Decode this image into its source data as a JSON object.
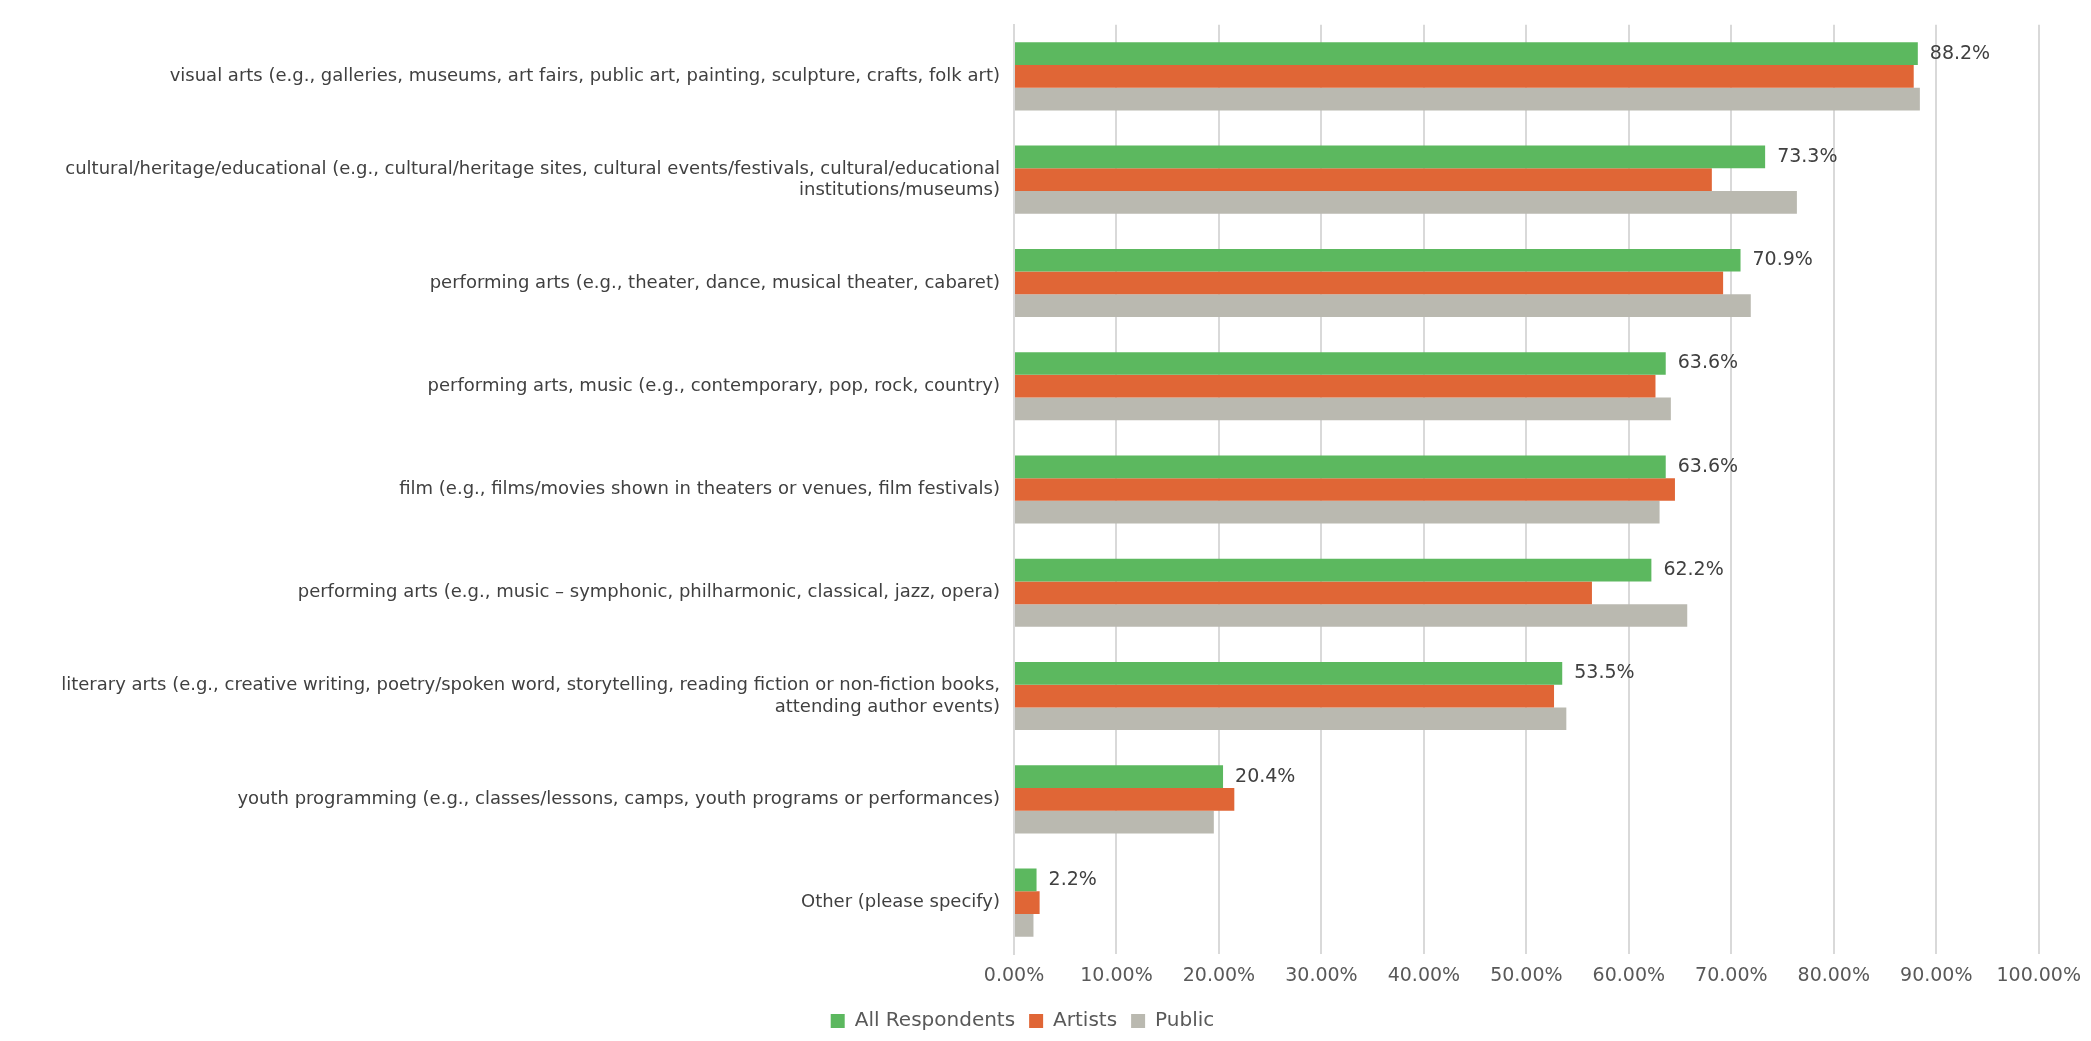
{
  "chart_data": {
    "type": "bar",
    "orientation": "horizontal",
    "categories": [
      "visual arts (e.g., galleries, museums, art fairs, public art, painting, sculpture, crafts, folk art)",
      "cultural/heritage/educational (e.g., cultural/heritage sites, cultural events/festivals, cultural/educational institutions/museums)",
      "performing arts (e.g., theater, dance, musical theater, cabaret)",
      "performing arts, music (e.g., contemporary, pop, rock, country)",
      "film (e.g., films/movies shown in theaters or venues, film festivals)",
      "performing arts (e.g., music – symphonic, philharmonic, classical, jazz, opera)",
      "literary arts (e.g., creative writing, poetry/spoken word, storytelling, reading fiction or non-fiction books, attending author events)",
      "youth programming (e.g., classes/lessons, camps, youth programs or performances)",
      "Other (please specify)"
    ],
    "series": [
      {
        "name": "All Respondents",
        "color": "#5cb85f",
        "values": [
          88.2,
          73.3,
          70.9,
          63.6,
          63.6,
          62.2,
          53.5,
          20.4,
          2.2
        ],
        "value_labels": [
          "88.2%",
          "73.3%",
          "70.9%",
          "63.6%",
          "63.6%",
          "62.2%",
          "53.5%",
          "20.4%",
          "2.2%"
        ]
      },
      {
        "name": "Artists",
        "color": "#e06636",
        "values": [
          87.8,
          68.1,
          69.2,
          62.6,
          64.5,
          56.4,
          52.7,
          21.5,
          2.5
        ]
      },
      {
        "name": "Public",
        "color": "#bab9b0",
        "values": [
          88.4,
          76.4,
          71.9,
          64.1,
          63.0,
          65.7,
          53.9,
          19.5,
          1.9
        ]
      }
    ],
    "xlim": [
      0,
      100
    ],
    "xticks": [
      {
        "value": 0,
        "label": "0.00%"
      },
      {
        "value": 10,
        "label": "10.00%"
      },
      {
        "value": 20,
        "label": "20.00%"
      },
      {
        "value": 30,
        "label": "30.00%"
      },
      {
        "value": 40,
        "label": "40.00%"
      },
      {
        "value": 50,
        "label": "50.00%"
      },
      {
        "value": 60,
        "label": "60.00%"
      },
      {
        "value": 70,
        "label": "70.00%"
      },
      {
        "value": 80,
        "label": "80.00%"
      },
      {
        "value": 90,
        "label": "90.00%"
      },
      {
        "value": 100,
        "label": "100.00%"
      }
    ],
    "grid": "x",
    "legend": "bottom"
  }
}
